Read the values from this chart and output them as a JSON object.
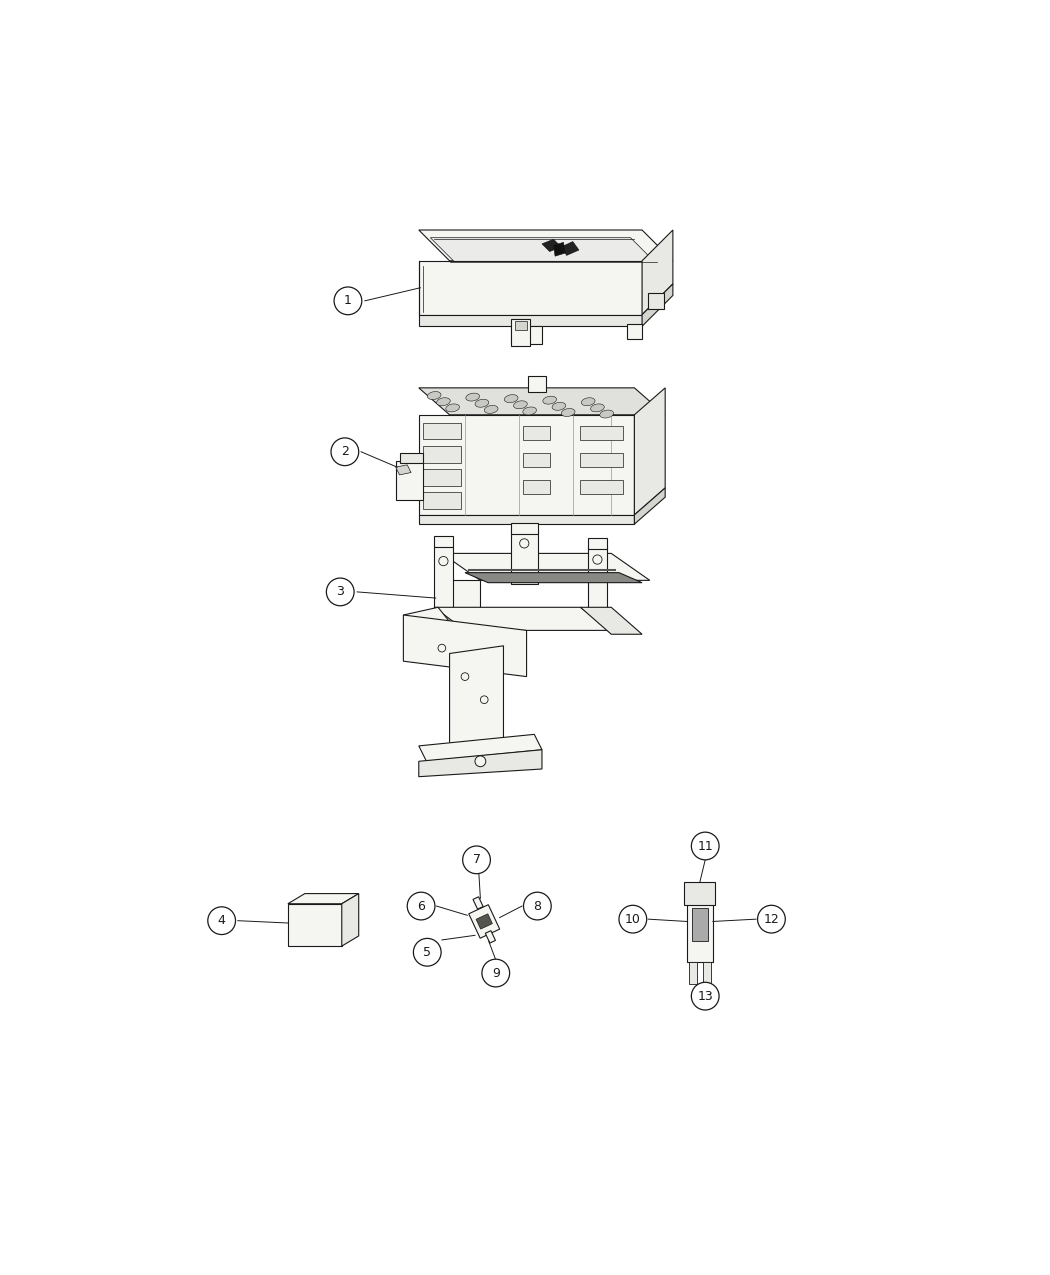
{
  "background_color": "#ffffff",
  "line_color": "#1a1a1a",
  "fig_width": 10.5,
  "fig_height": 12.75,
  "dpi": 100,
  "lw": 0.8,
  "fill_light": "#f5f5f2",
  "fill_mid": "#e8e8e5",
  "fill_dark": "#d5d5d0",
  "circle_r": 0.018
}
